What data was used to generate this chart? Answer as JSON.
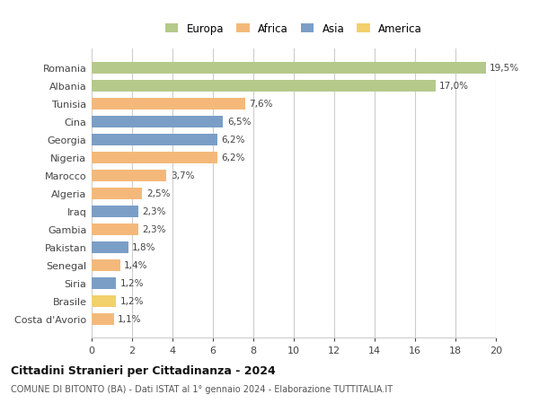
{
  "countries": [
    "Romania",
    "Albania",
    "Tunisia",
    "Cina",
    "Georgia",
    "Nigeria",
    "Marocco",
    "Algeria",
    "Iraq",
    "Gambia",
    "Pakistan",
    "Senegal",
    "Siria",
    "Brasile",
    "Costa d'Avorio"
  ],
  "values": [
    19.5,
    17.0,
    7.6,
    6.5,
    6.2,
    6.2,
    3.7,
    2.5,
    2.3,
    2.3,
    1.8,
    1.4,
    1.2,
    1.2,
    1.1
  ],
  "labels": [
    "19,5%",
    "17,0%",
    "7,6%",
    "6,5%",
    "6,2%",
    "6,2%",
    "3,7%",
    "2,5%",
    "2,3%",
    "2,3%",
    "1,8%",
    "1,4%",
    "1,2%",
    "1,2%",
    "1,1%"
  ],
  "colors": [
    "#b5c98a",
    "#b5c98a",
    "#f4b97a",
    "#7b9ec7",
    "#7b9ec7",
    "#f4b97a",
    "#f4b97a",
    "#f4b97a",
    "#7b9ec7",
    "#f4b97a",
    "#7b9ec7",
    "#f4b97a",
    "#7b9ec7",
    "#f2d06b",
    "#f4b97a"
  ],
  "legend_labels": [
    "Europa",
    "Africa",
    "Asia",
    "America"
  ],
  "legend_colors": [
    "#b5c98a",
    "#f4b97a",
    "#7b9ec7",
    "#f2d06b"
  ],
  "title": "Cittadini Stranieri per Cittadinanza - 2024",
  "subtitle": "COMUNE DI BITONTO (BA) - Dati ISTAT al 1° gennaio 2024 - Elaborazione TUTTITALIA.IT",
  "xlim": [
    0,
    20
  ],
  "xticks": [
    0,
    2,
    4,
    6,
    8,
    10,
    12,
    14,
    16,
    18,
    20
  ],
  "bg_color": "#ffffff",
  "grid_color": "#cccccc",
  "bar_height": 0.65
}
